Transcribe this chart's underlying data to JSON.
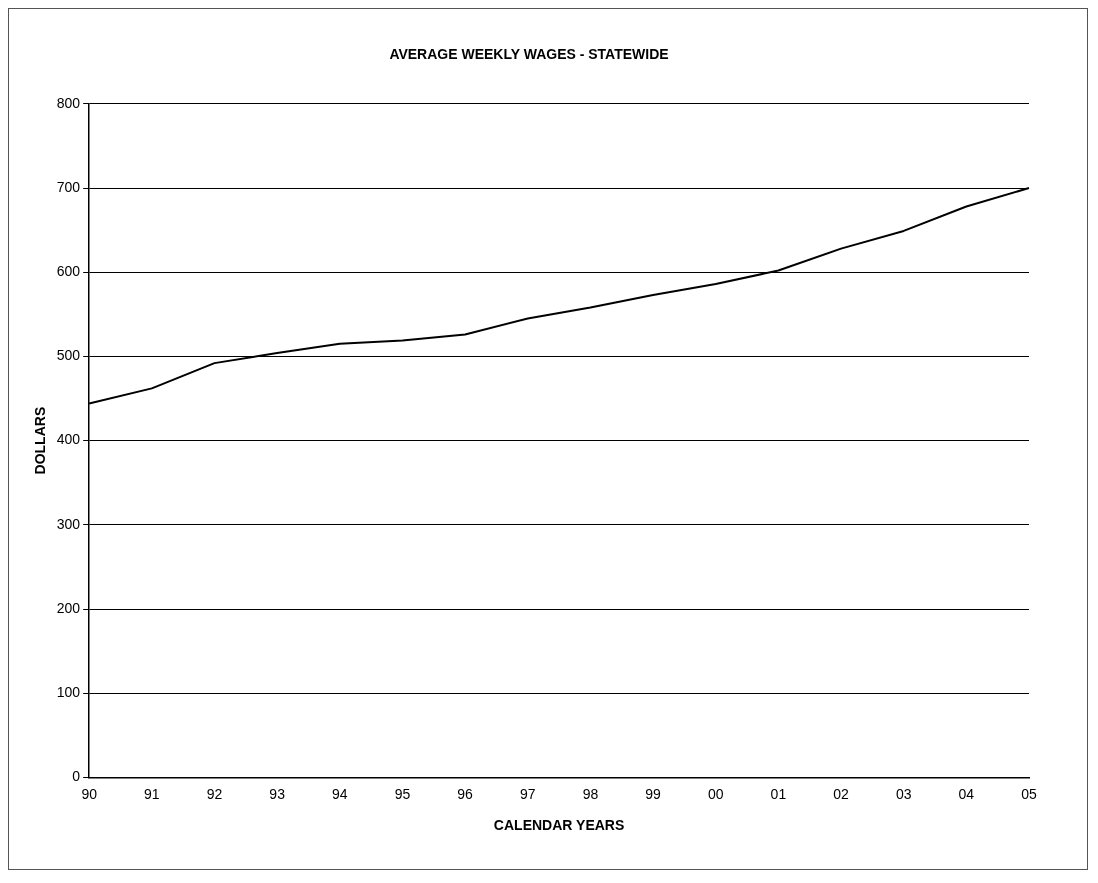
{
  "chart_data": {
    "type": "line",
    "title": "AVERAGE WEEKLY WAGES - STATEWIDE",
    "xlabel": "CALENDAR YEARS",
    "ylabel": "DOLLARS",
    "categories": [
      "90",
      "91",
      "92",
      "93",
      "94",
      "95",
      "96",
      "97",
      "98",
      "99",
      "00",
      "01",
      "02",
      "03",
      "04",
      "05"
    ],
    "series": [
      {
        "color": "#000000",
        "values": [
          444,
          462,
          492,
          504,
          515,
          519,
          526,
          545,
          558,
          573,
          586,
          602,
          628,
          649,
          678,
          700
        ]
      }
    ],
    "ylim": [
      0,
      800
    ],
    "yticks": [
      0,
      100,
      200,
      300,
      400,
      500,
      600,
      700,
      800
    ],
    "grid": "y",
    "legend": false,
    "marker": "none",
    "line_style": "solid"
  }
}
